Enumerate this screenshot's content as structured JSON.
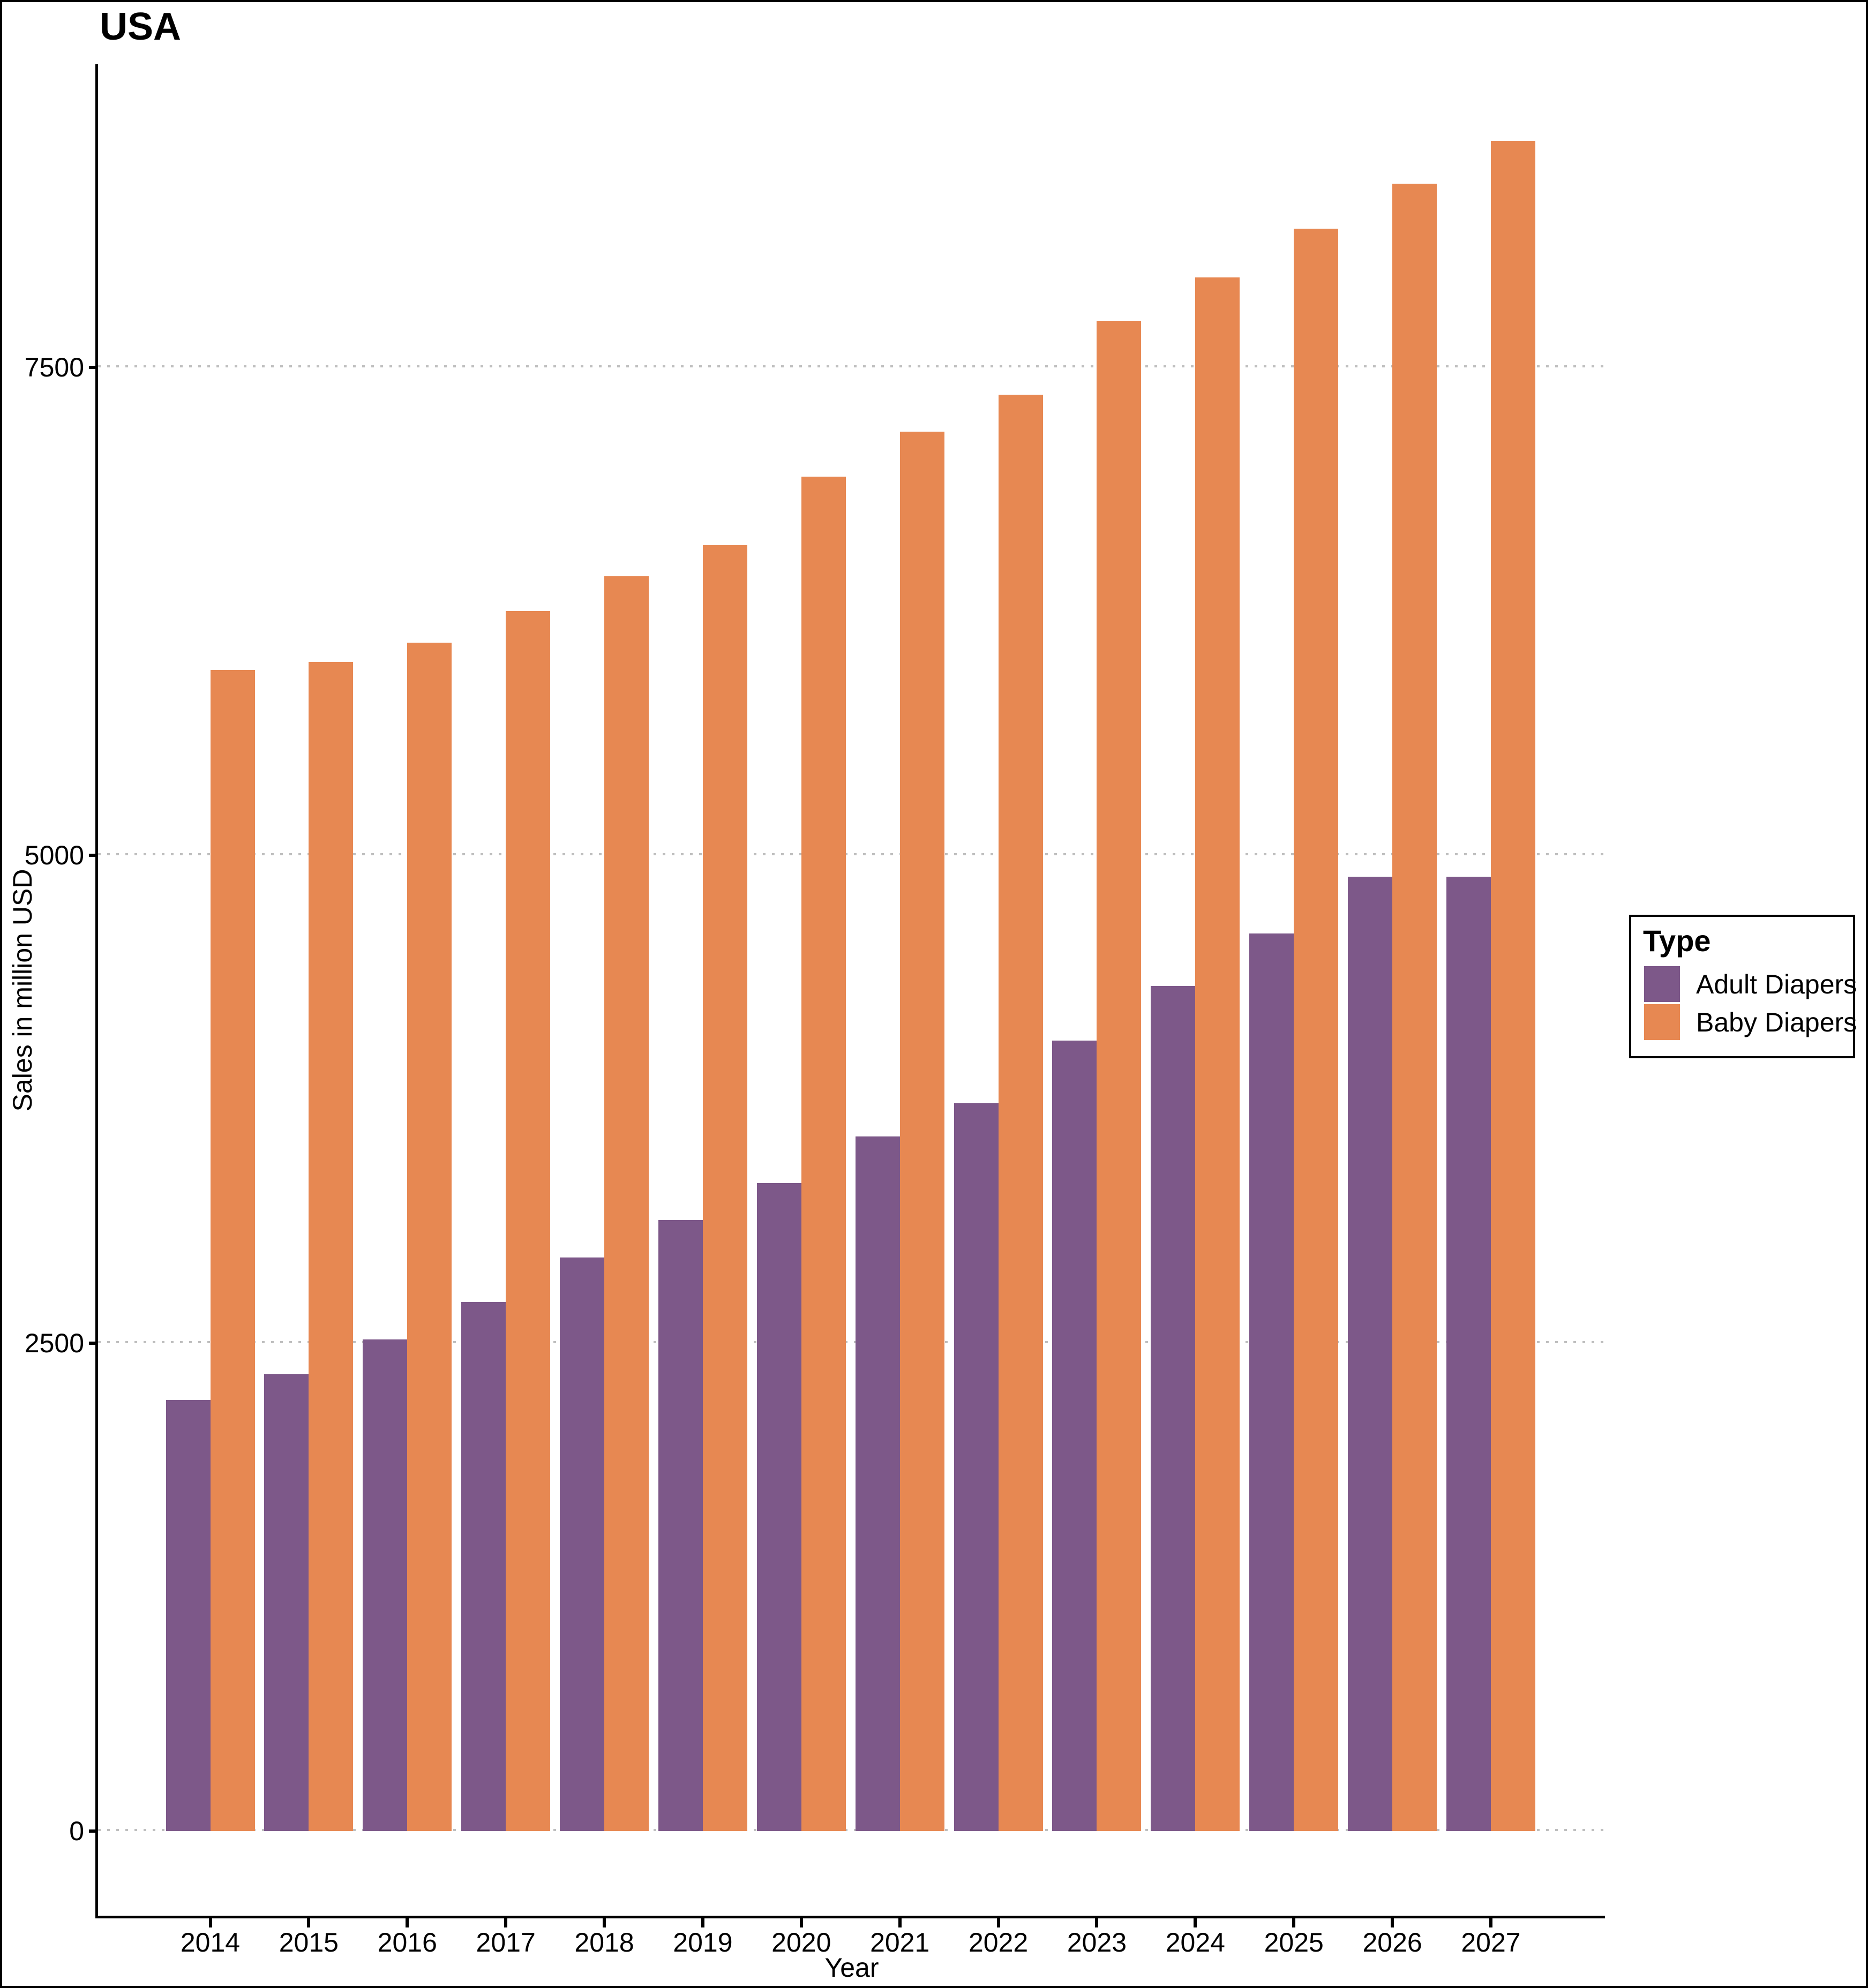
{
  "chart_data": {
    "type": "bar",
    "title": "USA",
    "xlabel": "Year",
    "ylabel": "Sales in million USD",
    "legend_title": "Type",
    "legend_position": "right",
    "grid": "dotted horizontal gridlines",
    "categories": [
      "2014",
      "2015",
      "2016",
      "2017",
      "2018",
      "2019",
      "2020",
      "2021",
      "2022",
      "2023",
      "2024",
      "2025",
      "2026",
      "2027"
    ],
    "series": [
      {
        "name": "Adult Diapers",
        "color": "#7D5889",
        "values": [
          2210,
          2340,
          2520,
          2710,
          2940,
          3130,
          3320,
          3560,
          3730,
          4050,
          4330,
          4600,
          4890,
          4890
        ]
      },
      {
        "name": "Baby Diapers",
        "color": "#E78852",
        "values": [
          5950,
          5990,
          6090,
          6250,
          6430,
          6590,
          6940,
          7170,
          7360,
          7740,
          7960,
          8210,
          8440,
          8660
        ]
      }
    ],
    "y_ticks": [
      0,
      2500,
      5000,
      7500
    ],
    "ylim": [
      0,
      9050
    ],
    "units": "million USD"
  }
}
